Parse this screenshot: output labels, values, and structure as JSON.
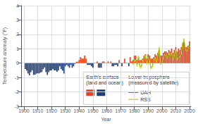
{
  "chart_data": {
    "type": "bar",
    "xlabel": "Year",
    "ylabel": "Temperature anomaly (°F)",
    "xlim": [
      1898,
      2021
    ],
    "ylim": [
      -3,
      4
    ],
    "xticks": [
      1900,
      1910,
      1920,
      1930,
      1940,
      1950,
      1960,
      1970,
      1980,
      1990,
      2000,
      2010,
      2020
    ],
    "yticks": [
      -3,
      -2,
      -1,
      0,
      1,
      2,
      3,
      4
    ],
    "grid": true,
    "legend": "lower right",
    "annotations": [
      "Earth's surface",
      "(land and ocean)",
      "Lower troposphere",
      "(measured by satellite)"
    ],
    "series": [
      {
        "type": "bar",
        "x": [
          1901,
          1902,
          1903,
          1904,
          1905,
          1906,
          1907,
          1908,
          1909,
          1910,
          1911,
          1912,
          1913,
          1914,
          1915,
          1916,
          1917,
          1918,
          1919,
          1920,
          1921,
          1922,
          1923,
          1924,
          1925,
          1926,
          1927,
          1928,
          1929,
          1930,
          1931,
          1932,
          1933,
          1934,
          1935,
          1936,
          1937,
          1938,
          1939,
          1940,
          1941,
          1942,
          1943,
          1944,
          1945,
          1946,
          1947,
          1948,
          1949,
          1950,
          1951,
          1952,
          1953,
          1954,
          1955,
          1956,
          1957,
          1958,
          1959,
          1960,
          1961,
          1962,
          1963,
          1964,
          1965,
          1966,
          1967,
          1968,
          1969,
          1970,
          1971,
          1972,
          1973,
          1974,
          1975,
          1976,
          1977,
          1978,
          1979,
          1980,
          1981,
          1982,
          1983,
          1984,
          1985,
          1986,
          1987,
          1988,
          1989,
          1990,
          1991,
          1992,
          1993,
          1994,
          1995,
          1996,
          1997,
          1998,
          1999,
          2000,
          2001,
          2002,
          2003,
          2004,
          2005,
          2006,
          2007,
          2008,
          2009,
          2010,
          2011,
          2012,
          2013,
          2014,
          2015,
          2016,
          2017,
          2018,
          2019,
          2020
        ],
        "values": [
          -0.4,
          -0.52,
          -0.72,
          -0.85,
          -0.63,
          -0.5,
          -0.82,
          -0.8,
          -0.73,
          -0.7,
          -0.72,
          -0.65,
          -0.62,
          -0.42,
          -0.3,
          -0.62,
          -0.82,
          -0.62,
          -0.52,
          -0.5,
          -0.42,
          -0.5,
          -0.5,
          -0.6,
          -0.5,
          -0.22,
          -0.42,
          -0.52,
          -0.72,
          -0.22,
          -0.12,
          -0.22,
          -0.32,
          -0.12,
          -0.32,
          -0.22,
          -0.05,
          0.1,
          0.1,
          0.22,
          0.42,
          0.32,
          0.32,
          0.52,
          0.32,
          -0.12,
          -0.12,
          -0.12,
          -0.22,
          -0.32,
          0.02,
          0.02,
          0.12,
          -0.32,
          -0.32,
          -0.32,
          0.12,
          0.12,
          0.02,
          -0.02,
          0.12,
          0.02,
          0.12,
          -0.22,
          -0.22,
          -0.12,
          -0.12,
          -0.22,
          0.22,
          0.02,
          -0.22,
          0.02,
          0.32,
          0.02,
          -0.02,
          -0.22,
          0.42,
          0.12,
          0.22,
          0.52,
          0.52,
          0.22,
          0.42,
          0.22,
          0.22,
          0.32,
          0.52,
          0.62,
          0.32,
          0.62,
          0.52,
          0.32,
          0.32,
          0.42,
          0.62,
          0.52,
          0.72,
          0.92,
          0.52,
          0.52,
          0.72,
          0.82,
          0.82,
          0.72,
          0.92,
          0.82,
          1.02,
          0.72,
          0.92,
          1.12,
          0.82,
          1.02,
          0.92,
          1.12,
          1.42,
          1.52,
          1.12,
          1.12,
          1.22,
          1.52
        ],
        "colors": [
          "#1e3c7a",
          "#1e3c7a",
          "#1e3c7a",
          "#1e3c7a",
          "#1e3c7a",
          "#1e3c7a",
          "#1e3c7a",
          "#1e3c7a",
          "#1e3c7a",
          "#1e3c7a",
          "#1e3c7a",
          "#1e3c7a",
          "#1e3c7a",
          "#1e3c7a",
          "#1e3c7a",
          "#1e3c7a",
          "#1e3c7a",
          "#1e3c7a",
          "#1e3c7a",
          "#1e3c7a",
          "#1e3c7a",
          "#1e3c7a",
          "#1e3c7a",
          "#1e3c7a",
          "#1e3c7a",
          "#1e3c7a",
          "#1e3c7a",
          "#1e3c7a",
          "#1e3c7a",
          "#1e3c7a",
          "#1e3c7a",
          "#1e3c7a",
          "#1e3c7a",
          "#1e3c7a",
          "#1e3c7a",
          "#1e3c7a",
          "#1e3c7a",
          "#e8431a",
          "#e8431a",
          "#e8431a",
          "#e8431a",
          "#e8431a",
          "#e8431a",
          "#e8431a",
          "#e8431a",
          "#1e3c7a",
          "#1e3c7a",
          "#1e3c7a",
          "#1e3c7a",
          "#1e3c7a",
          "#e8431a",
          "#e8431a",
          "#e8431a",
          "#1e3c7a",
          "#1e3c7a",
          "#1e3c7a",
          "#e8431a",
          "#e8431a",
          "#e8431a",
          "#1e3c7a",
          "#e8431a",
          "#e8431a",
          "#e8431a",
          "#1e3c7a",
          "#1e3c7a",
          "#1e3c7a",
          "#1e3c7a",
          "#1e3c7a",
          "#e8431a",
          "#e8431a",
          "#1e3c7a",
          "#e8431a",
          "#e8431a",
          "#e8431a",
          "#1e3c7a",
          "#1e3c7a",
          "#e8431a",
          "#e8431a",
          "#e8431a",
          "#e8431a",
          "#e8431a",
          "#e8431a",
          "#e8431a",
          "#e8431a",
          "#e8431a",
          "#e8431a",
          "#e8431a",
          "#e8431a",
          "#e8431a",
          "#e8431a",
          "#e8431a",
          "#e8431a",
          "#e8431a",
          "#e8431a",
          "#e8431a",
          "#e8431a",
          "#e8431a",
          "#e8431a",
          "#e8431a",
          "#e8431a",
          "#e8431a",
          "#e8431a",
          "#e8431a",
          "#e8431a",
          "#e8431a",
          "#e8431a",
          "#e8431a",
          "#e8431a",
          "#e8431a",
          "#e8431a",
          "#e8431a",
          "#e8431a",
          "#e8431a",
          "#e8431a",
          "#e8431a",
          "#e8431a",
          "#e8431a",
          "#e8431a",
          "#e8431a",
          "#e8431a"
        ]
      },
      {
        "name": "UAH",
        "type": "line",
        "color": "#22aa44",
        "x": [
          1979,
          1980,
          1981,
          1982,
          1983,
          1984,
          1985,
          1986,
          1987,
          1988,
          1989,
          1990,
          1991,
          1992,
          1993,
          1994,
          1995,
          1996,
          1997,
          1998,
          1999,
          2000,
          2001,
          2002,
          2003,
          2004,
          2005,
          2006,
          2007,
          2008,
          2009,
          2010,
          2011,
          2012,
          2013,
          2014,
          2015,
          2016,
          2017,
          2018,
          2019,
          2020
        ],
        "values": [
          -0.1,
          0.3,
          0.22,
          -0.12,
          0.42,
          -0.22,
          -0.22,
          0.12,
          0.42,
          0.52,
          0.02,
          0.52,
          0.22,
          -0.32,
          -0.22,
          0.22,
          0.42,
          0.12,
          0.42,
          1.02,
          0.02,
          0.12,
          0.42,
          0.52,
          0.52,
          0.32,
          0.62,
          0.52,
          0.62,
          0.22,
          0.52,
          0.82,
          0.32,
          0.52,
          0.52,
          0.62,
          1.12,
          1.52,
          0.92,
          0.82,
          1.02,
          1.32
        ]
      },
      {
        "name": "RSS",
        "type": "line",
        "color": "#ddcc00",
        "x": [
          1979,
          1980,
          1981,
          1982,
          1983,
          1984,
          1985,
          1986,
          1987,
          1988,
          1989,
          1990,
          1991,
          1992,
          1993,
          1994,
          1995,
          1996,
          1997,
          1998,
          1999,
          2000,
          2001,
          2002,
          2003,
          2004,
          2005,
          2006,
          2007,
          2008,
          2009,
          2010,
          2011,
          2012,
          2013,
          2014,
          2015,
          2016,
          2017,
          2018,
          2019,
          2020
        ],
        "values": [
          -0.12,
          0.22,
          0.22,
          -0.22,
          0.52,
          -0.32,
          -0.32,
          0.12,
          0.52,
          0.52,
          -0.12,
          0.42,
          0.22,
          -0.42,
          -0.32,
          0.22,
          0.42,
          0.02,
          0.52,
          1.12,
          -0.12,
          0.02,
          0.42,
          0.62,
          0.52,
          0.32,
          0.72,
          0.52,
          0.72,
          0.22,
          0.52,
          0.92,
          0.22,
          0.42,
          0.42,
          0.62,
          1.32,
          1.72,
          0.92,
          0.82,
          1.02,
          1.22
        ]
      }
    ]
  }
}
